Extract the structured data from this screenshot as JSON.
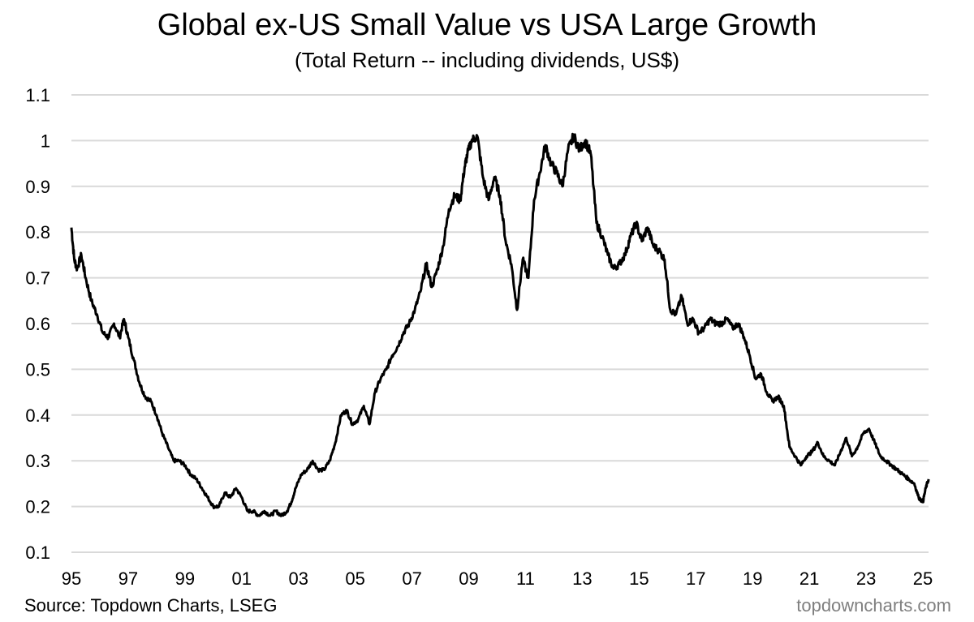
{
  "chart_data": {
    "type": "line",
    "title": "Global ex-US Small Value vs USA Large Growth",
    "subtitle": "(Total Return -- including dividends, US$)",
    "xlabel": "",
    "ylabel": "",
    "xlim": [
      1995.0,
      2025.2
    ],
    "ylim": [
      0.1,
      1.1
    ],
    "grid": "horizontal",
    "y_ticks": [
      1.1,
      1.0,
      0.9,
      0.8,
      0.7,
      0.6,
      0.5,
      0.4,
      0.3,
      0.2,
      0.1
    ],
    "y_tick_labels": [
      "1.1",
      "1",
      "0.9",
      "0.8",
      "0.7",
      "0.6",
      "0.5",
      "0.4",
      "0.3",
      "0.2",
      "0.1"
    ],
    "x_ticks": [
      1995,
      1997,
      1999,
      2001,
      2003,
      2005,
      2007,
      2009,
      2011,
      2013,
      2015,
      2017,
      2019,
      2021,
      2023,
      2025
    ],
    "x_tick_labels": [
      "95",
      "97",
      "99",
      "01",
      "03",
      "05",
      "07",
      "09",
      "11",
      "13",
      "15",
      "17",
      "19",
      "21",
      "23",
      "25"
    ],
    "series": [
      {
        "name": "Global ex-US Small Value / USA Large Growth",
        "color": "#000000",
        "x": [
          1995.0,
          1995.1,
          1995.2,
          1995.35,
          1995.5,
          1995.7,
          1995.9,
          1996.1,
          1996.3,
          1996.5,
          1996.7,
          1996.85,
          1997.0,
          1997.2,
          1997.4,
          1997.6,
          1997.8,
          1998.0,
          1998.2,
          1998.4,
          1998.6,
          1998.8,
          1999.0,
          1999.2,
          1999.4,
          1999.6,
          1999.8,
          2000.0,
          2000.2,
          2000.4,
          2000.6,
          2000.8,
          2001.0,
          2001.2,
          2001.4,
          2001.6,
          2001.8,
          2002.0,
          2002.2,
          2002.4,
          2002.6,
          2002.75,
          2002.9,
          2003.1,
          2003.3,
          2003.5,
          2003.7,
          2003.9,
          2004.1,
          2004.3,
          2004.5,
          2004.7,
          2004.9,
          2005.1,
          2005.3,
          2005.5,
          2005.7,
          2005.9,
          2006.1,
          2006.3,
          2006.5,
          2006.7,
          2006.9,
          2007.1,
          2007.3,
          2007.5,
          2007.7,
          2007.9,
          2008.1,
          2008.3,
          2008.5,
          2008.7,
          2008.85,
          2008.95,
          2009.1,
          2009.3,
          2009.5,
          2009.7,
          2009.9,
          2010.1,
          2010.3,
          2010.5,
          2010.7,
          2010.9,
          2011.1,
          2011.3,
          2011.5,
          2011.7,
          2011.9,
          2012.1,
          2012.3,
          2012.5,
          2012.7,
          2012.9,
          2013.1,
          2013.3,
          2013.5,
          2013.7,
          2013.9,
          2014.1,
          2014.3,
          2014.5,
          2014.7,
          2014.9,
          2015.1,
          2015.3,
          2015.5,
          2015.7,
          2015.9,
          2016.1,
          2016.3,
          2016.5,
          2016.7,
          2016.9,
          2017.1,
          2017.3,
          2017.5,
          2017.7,
          2017.9,
          2018.1,
          2018.3,
          2018.5,
          2018.7,
          2018.9,
          2019.1,
          2019.3,
          2019.5,
          2019.7,
          2019.9,
          2020.1,
          2020.3,
          2020.5,
          2020.7,
          2020.9,
          2021.1,
          2021.3,
          2021.5,
          2021.7,
          2021.9,
          2022.1,
          2022.3,
          2022.5,
          2022.7,
          2022.9,
          2023.1,
          2023.3,
          2023.5,
          2023.7,
          2023.9,
          2024.1,
          2024.3,
          2024.5,
          2024.7,
          2024.85,
          2025.0,
          2025.1,
          2025.2
        ],
        "values": [
          0.81,
          0.74,
          0.72,
          0.75,
          0.7,
          0.65,
          0.62,
          0.58,
          0.57,
          0.6,
          0.57,
          0.61,
          0.57,
          0.52,
          0.47,
          0.44,
          0.43,
          0.4,
          0.36,
          0.33,
          0.3,
          0.3,
          0.29,
          0.27,
          0.26,
          0.24,
          0.22,
          0.2,
          0.2,
          0.23,
          0.22,
          0.24,
          0.22,
          0.19,
          0.19,
          0.18,
          0.19,
          0.18,
          0.19,
          0.18,
          0.19,
          0.21,
          0.24,
          0.27,
          0.28,
          0.3,
          0.28,
          0.28,
          0.3,
          0.34,
          0.4,
          0.41,
          0.38,
          0.39,
          0.42,
          0.38,
          0.45,
          0.48,
          0.5,
          0.53,
          0.55,
          0.58,
          0.6,
          0.63,
          0.67,
          0.73,
          0.68,
          0.72,
          0.77,
          0.85,
          0.88,
          0.87,
          0.94,
          0.97,
          1.0,
          1.01,
          0.92,
          0.87,
          0.92,
          0.88,
          0.78,
          0.73,
          0.63,
          0.74,
          0.7,
          0.87,
          0.93,
          0.99,
          0.95,
          0.93,
          0.9,
          0.98,
          1.01,
          0.98,
          1.0,
          0.97,
          0.82,
          0.79,
          0.75,
          0.72,
          0.73,
          0.75,
          0.79,
          0.82,
          0.78,
          0.81,
          0.77,
          0.76,
          0.74,
          0.63,
          0.62,
          0.66,
          0.6,
          0.61,
          0.58,
          0.59,
          0.61,
          0.6,
          0.6,
          0.61,
          0.59,
          0.6,
          0.57,
          0.53,
          0.48,
          0.49,
          0.45,
          0.43,
          0.44,
          0.42,
          0.33,
          0.31,
          0.29,
          0.31,
          0.32,
          0.34,
          0.31,
          0.3,
          0.29,
          0.32,
          0.35,
          0.31,
          0.33,
          0.36,
          0.37,
          0.34,
          0.31,
          0.3,
          0.29,
          0.28,
          0.27,
          0.26,
          0.25,
          0.22,
          0.21,
          0.24,
          0.26
        ]
      }
    ],
    "legend": "none"
  },
  "footer": {
    "source": "Source: Topdown Charts, LSEG",
    "brand": "topdowncharts.com"
  },
  "colors": {
    "line": "#000000",
    "grid": "#d9d9d9",
    "brand_text": "#7f7f7f"
  }
}
